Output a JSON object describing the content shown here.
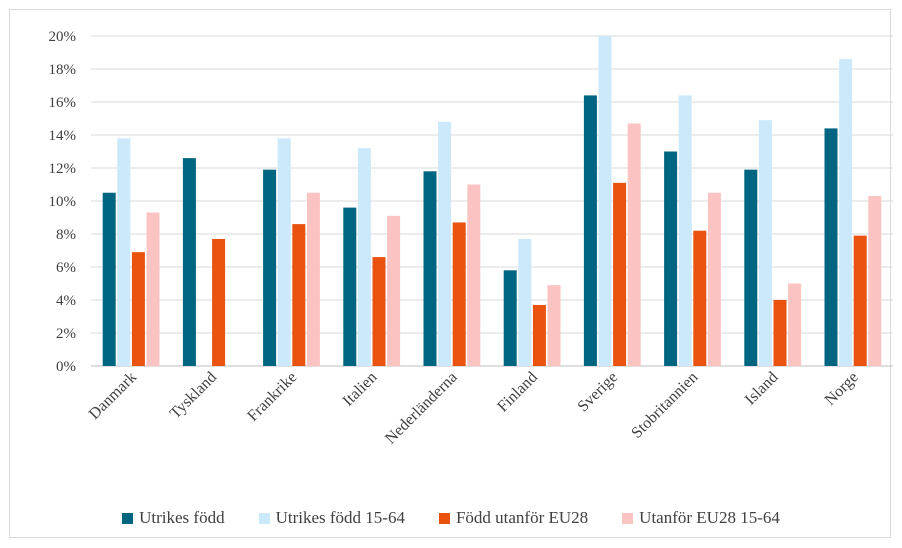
{
  "chart_data": {
    "type": "bar",
    "categories": [
      "Danmark",
      "Tyskland",
      "Frankrike",
      "Italien",
      "Nederländerna",
      "Finland",
      "Sverige",
      "Stobritannien",
      "Island",
      "Norge"
    ],
    "series": [
      {
        "name": "Utrikes född",
        "color": "#006580",
        "values": [
          10.5,
          12.6,
          11.9,
          9.6,
          11.8,
          5.8,
          16.4,
          13.0,
          11.9,
          14.4
        ]
      },
      {
        "name": "Utrikes född 15-64",
        "color": "#cce9fb",
        "values": [
          13.8,
          null,
          13.8,
          13.2,
          14.8,
          7.7,
          20.0,
          16.4,
          14.9,
          18.6
        ]
      },
      {
        "name": "Född utanför EU28",
        "color": "#e9520f",
        "values": [
          6.9,
          7.7,
          8.6,
          6.6,
          8.7,
          3.7,
          11.1,
          8.2,
          4.0,
          7.9
        ]
      },
      {
        "name": "Utanför EU28 15-64",
        "color": "#fbc4c3",
        "values": [
          9.3,
          null,
          10.5,
          9.1,
          11.0,
          4.9,
          14.7,
          10.5,
          5.0,
          10.3
        ]
      }
    ],
    "yticks": [
      "0%",
      "2%",
      "4%",
      "6%",
      "8%",
      "10%",
      "12%",
      "14%",
      "16%",
      "18%",
      "20%"
    ],
    "ylim": [
      0,
      20
    ],
    "grid": true,
    "legend_position": "bottom",
    "xlabel": "",
    "ylabel": "",
    "title": ""
  }
}
